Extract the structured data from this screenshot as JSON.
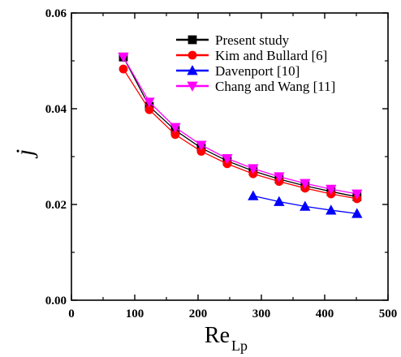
{
  "chart_data": {
    "type": "line",
    "xlabel": "Re",
    "xlabel_sub": "Lp",
    "ylabel": "j",
    "xlim": [
      0,
      500
    ],
    "ylim": [
      0.0,
      0.06
    ],
    "xticks": [
      0,
      100,
      200,
      300,
      400,
      500
    ],
    "xtick_labels": [
      "0",
      "100",
      "200",
      "300",
      "400",
      "500"
    ],
    "yticks": [
      0.0,
      0.02,
      0.04,
      0.06
    ],
    "ytick_labels": [
      "0.00",
      "0.02",
      "0.04",
      "0.06"
    ],
    "grid": false,
    "legend_position": "top-right",
    "series": [
      {
        "name": "Present study",
        "color": "#000000",
        "marker": "square",
        "x": [
          82,
          123,
          164,
          205,
          246,
          287,
          328,
          369,
          410,
          451
        ],
        "y": [
          0.0508,
          0.0405,
          0.0355,
          0.0318,
          0.0291,
          0.027,
          0.0253,
          0.0239,
          0.0227,
          0.0216
        ]
      },
      {
        "name": "Kim and Bullard [6]",
        "color": "#ff0000",
        "marker": "circle",
        "x": [
          82,
          123,
          164,
          205,
          246,
          287,
          328,
          369,
          410,
          451
        ],
        "y": [
          0.0483,
          0.0398,
          0.0346,
          0.0311,
          0.0285,
          0.0264,
          0.0248,
          0.0234,
          0.0222,
          0.0212
        ]
      },
      {
        "name": "Davenport [10]",
        "color": "#0000ff",
        "marker": "triangle-up",
        "x": [
          287,
          328,
          369,
          410,
          451
        ],
        "y": [
          0.0218,
          0.0206,
          0.0196,
          0.0188,
          0.0181
        ]
      },
      {
        "name": "Chang and Wang [11]",
        "color": "#ff00ff",
        "marker": "triangle-down",
        "x": [
          82,
          123,
          164,
          205,
          246,
          287,
          328,
          369,
          410,
          451
        ],
        "y": [
          0.0508,
          0.0414,
          0.0361,
          0.0324,
          0.0296,
          0.0275,
          0.0258,
          0.0244,
          0.0232,
          0.0222
        ]
      }
    ]
  }
}
